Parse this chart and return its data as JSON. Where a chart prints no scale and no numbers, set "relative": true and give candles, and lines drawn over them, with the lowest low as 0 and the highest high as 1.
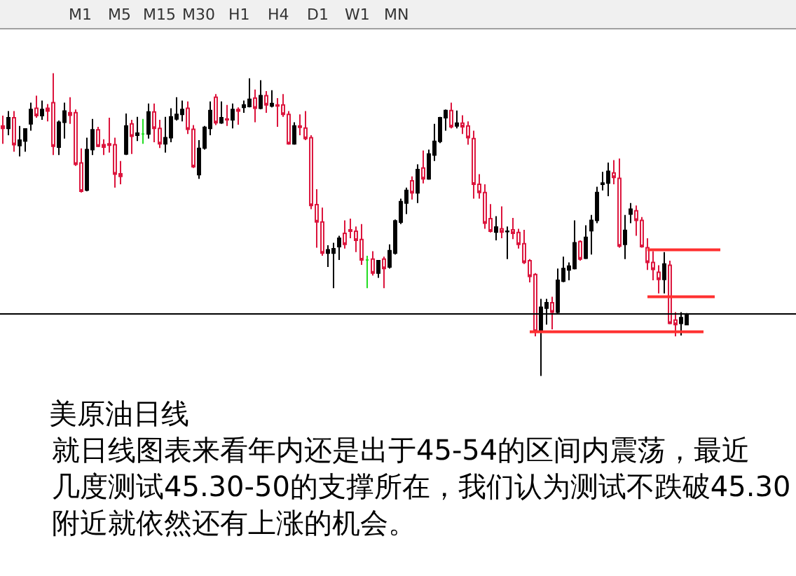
{
  "chart_data": {
    "type": "candlestick",
    "relative": true,
    "title": "美原油日线",
    "subtitle": "就日线图表来看年内还是出于45-54的区间内震荡，最近几度测试45.30-50的支撑所在，我们认为测试不跌破45.30附近就依然还有上涨的机会。",
    "annotations": [
      "M1",
      "M5",
      "M15",
      "M30",
      "H1",
      "H4",
      "D1",
      "W1",
      "MN"
    ],
    "categories": [
      null,
      null,
      null,
      null,
      null,
      null,
      null,
      null,
      null,
      null,
      null,
      null,
      null,
      null,
      null,
      null,
      null,
      null,
      null,
      null,
      null,
      null,
      null,
      null,
      null,
      null,
      null,
      null,
      null,
      null,
      null,
      null,
      null,
      null,
      null,
      null,
      null,
      null,
      null,
      null,
      null,
      null,
      null,
      null,
      null,
      null,
      null,
      null,
      null,
      null,
      null,
      null,
      null,
      null,
      null,
      null,
      null,
      null,
      null,
      null,
      null,
      null,
      null,
      null,
      null,
      null,
      null,
      null,
      null,
      null,
      null,
      null,
      null,
      null,
      null,
      null,
      null,
      null,
      null,
      null,
      null,
      null,
      null,
      null,
      null,
      null,
      null,
      null,
      null,
      null,
      null,
      null,
      null,
      null,
      null,
      null,
      null,
      null,
      null,
      null,
      null,
      null,
      null,
      null,
      null,
      null,
      null,
      null,
      null,
      null,
      null,
      null,
      null,
      null,
      null,
      null,
      null,
      null,
      null,
      null,
      null,
      null,
      null,
      null,
      null,
      null,
      null,
      null,
      null,
      null,
      null,
      null,
      null,
      null,
      null,
      null,
      null,
      null,
      null,
      null,
      null,
      null
    ],
    "ohlc": [
      [
        0.826,
        0.86,
        0.767,
        0.818
      ],
      [
        0.818,
        0.875,
        0.795,
        0.853
      ],
      [
        0.853,
        0.875,
        0.741,
        0.764
      ],
      [
        0.761,
        0.826,
        0.725,
        0.779
      ],
      [
        0.776,
        0.818,
        0.741,
        0.816
      ],
      [
        0.833,
        0.903,
        0.81,
        0.88
      ],
      [
        0.884,
        0.926,
        0.853,
        0.86
      ],
      [
        0.86,
        0.91,
        0.846,
        0.88
      ],
      [
        0.884,
        0.898,
        0.841,
        0.875
      ],
      [
        0.903,
        1.0,
        0.73,
        0.759
      ],
      [
        0.756,
        0.844,
        0.73,
        0.838
      ],
      [
        0.838,
        0.903,
        0.784,
        0.875
      ],
      [
        0.87,
        0.921,
        0.833,
        0.861
      ],
      [
        0.87,
        0.88,
        0.694,
        0.699
      ],
      [
        0.704,
        0.752,
        0.606,
        0.61
      ],
      [
        0.614,
        0.787,
        0.61,
        0.748
      ],
      [
        0.748,
        0.849,
        0.73,
        0.813
      ],
      [
        0.813,
        0.823,
        0.756,
        0.759
      ],
      [
        0.764,
        0.782,
        0.73,
        0.756
      ],
      [
        0.767,
        0.853,
        0.738,
        0.762
      ],
      [
        0.764,
        0.787,
        0.622,
        0.667
      ],
      [
        0.668,
        0.71,
        0.633,
        0.659
      ],
      [
        0.733,
        0.867,
        0.73,
        0.826
      ],
      [
        0.833,
        0.846,
        0.733,
        0.792
      ],
      [
        0.795,
        0.856,
        0.776,
        0.802
      ],
      [
        0.799,
        0.849,
        0.767,
        0.799
      ],
      [
        0.799,
        0.9,
        0.784,
        0.872
      ],
      [
        0.872,
        0.9,
        0.772,
        0.818
      ],
      [
        0.818,
        0.846,
        0.753,
        0.767
      ],
      [
        0.767,
        0.856,
        0.738,
        0.787
      ],
      [
        0.787,
        0.884,
        0.772,
        0.856
      ],
      [
        0.849,
        0.921,
        0.844,
        0.864
      ],
      [
        0.864,
        0.91,
        0.841,
        0.88
      ],
      [
        0.884,
        0.907,
        0.799,
        0.815
      ],
      [
        0.815,
        0.829,
        0.687,
        0.691
      ],
      [
        0.665,
        0.779,
        0.651,
        0.752
      ],
      [
        0.753,
        0.826,
        0.748,
        0.821
      ],
      [
        0.818,
        0.907,
        0.795,
        0.877
      ],
      [
        0.921,
        0.931,
        0.829,
        0.836
      ],
      [
        0.836,
        0.907,
        0.833,
        0.853
      ],
      [
        0.849,
        0.895,
        0.826,
        0.846
      ],
      [
        0.846,
        0.9,
        0.818,
        0.88
      ],
      [
        0.88,
        0.887,
        0.83,
        0.875
      ],
      [
        0.887,
        0.91,
        0.869,
        0.895
      ],
      [
        0.89,
        0.983,
        0.887,
        0.914
      ],
      [
        0.918,
        0.946,
        0.838,
        0.884
      ],
      [
        0.884,
        0.977,
        0.881,
        0.926
      ],
      [
        0.926,
        0.941,
        0.869,
        0.895
      ],
      [
        0.892,
        0.944,
        0.887,
        0.9
      ],
      [
        0.895,
        0.918,
        0.823,
        0.892
      ],
      [
        0.895,
        0.931,
        0.856,
        0.864
      ],
      [
        0.864,
        0.875,
        0.764,
        0.767
      ],
      [
        0.767,
        0.838,
        0.764,
        0.826
      ],
      [
        0.826,
        0.864,
        0.795,
        0.821
      ],
      [
        0.819,
        0.875,
        0.779,
        0.784
      ],
      [
        0.787,
        0.795,
        0.551,
        0.563
      ],
      [
        0.566,
        0.617,
        0.424,
        0.509
      ],
      [
        0.509,
        0.556,
        0.397,
        0.406
      ],
      [
        0.406,
        0.432,
        0.36,
        0.417
      ],
      [
        0.406,
        0.44,
        0.29,
        0.42
      ],
      [
        0.427,
        0.463,
        0.383,
        0.455
      ],
      [
        0.471,
        0.514,
        0.421,
        0.435
      ],
      [
        0.483,
        0.52,
        0.455,
        0.478
      ],
      [
        0.478,
        0.494,
        0.409,
        0.448
      ],
      [
        0.451,
        0.502,
        0.367,
        0.383
      ],
      [
        0.383,
        0.397,
        0.29,
        0.383
      ],
      [
        0.386,
        0.412,
        0.332,
        0.34
      ],
      [
        0.34,
        0.381,
        0.324,
        0.381
      ],
      [
        0.386,
        0.394,
        0.29,
        0.355
      ],
      [
        0.36,
        0.435,
        0.355,
        0.414
      ],
      [
        0.406,
        0.517,
        0.401,
        0.512
      ],
      [
        0.508,
        0.586,
        0.502,
        0.576
      ],
      [
        0.571,
        0.622,
        0.535,
        0.613
      ],
      [
        0.645,
        0.659,
        0.583,
        0.605
      ],
      [
        0.605,
        0.699,
        0.571,
        0.682
      ],
      [
        0.687,
        0.745,
        0.636,
        0.651
      ],
      [
        0.651,
        0.748,
        0.648,
        0.733
      ],
      [
        0.73,
        0.833,
        0.71,
        0.775
      ],
      [
        0.775,
        0.856,
        0.769,
        0.853
      ],
      [
        0.853,
        0.88,
        0.81,
        0.877
      ],
      [
        0.877,
        0.903,
        0.818,
        0.823
      ],
      [
        0.826,
        0.877,
        0.818,
        0.835
      ],
      [
        0.835,
        0.861,
        0.799,
        0.823
      ],
      [
        0.826,
        0.841,
        0.764,
        0.787
      ],
      [
        0.784,
        0.81,
        0.586,
        0.633
      ],
      [
        0.633,
        0.667,
        0.586,
        0.606
      ],
      [
        0.606,
        0.633,
        0.486,
        0.505
      ],
      [
        0.52,
        0.568,
        0.474,
        0.478
      ],
      [
        0.475,
        0.528,
        0.448,
        0.492
      ],
      [
        0.486,
        0.56,
        0.455,
        0.475
      ],
      [
        0.477,
        0.494,
        0.386,
        0.478
      ],
      [
        0.483,
        0.522,
        0.452,
        0.471
      ],
      [
        0.474,
        0.486,
        0.421,
        0.435
      ],
      [
        0.437,
        0.483,
        0.37,
        0.375
      ],
      [
        0.381,
        0.386,
        0.309,
        0.329
      ],
      [
        0.335,
        0.34,
        0.131,
        0.147
      ],
      [
        0.147,
        0.255,
        0.0,
        0.227
      ],
      [
        0.224,
        0.255,
        0.17,
        0.242
      ],
      [
        0.242,
        0.262,
        0.154,
        0.211
      ],
      [
        0.211,
        0.355,
        0.205,
        0.316
      ],
      [
        0.313,
        0.394,
        0.31,
        0.355
      ],
      [
        0.35,
        0.375,
        0.316,
        0.363
      ],
      [
        0.355,
        0.514,
        0.352,
        0.44
      ],
      [
        0.444,
        0.448,
        0.381,
        0.386
      ],
      [
        0.389,
        0.498,
        0.386,
        0.458
      ],
      [
        0.48,
        0.532,
        0.401,
        0.514
      ],
      [
        0.514,
        0.625,
        0.505,
        0.606
      ],
      [
        0.633,
        0.674,
        0.613,
        0.637
      ],
      [
        0.637,
        0.705,
        0.594,
        0.676
      ],
      [
        0.671,
        0.713,
        0.633,
        0.656
      ],
      [
        0.653,
        0.718,
        0.424,
        0.429
      ],
      [
        0.435,
        0.532,
        0.386,
        0.481
      ],
      [
        0.535,
        0.571,
        0.505,
        0.551
      ],
      [
        0.546,
        0.563,
        0.463,
        0.514
      ],
      [
        0.514,
        0.525,
        0.424,
        0.427
      ],
      [
        0.424,
        0.455,
        0.35,
        0.375
      ],
      [
        0.375,
        0.412,
        0.316,
        0.352
      ],
      [
        0.343,
        0.366,
        0.273,
        0.319
      ],
      [
        0.319,
        0.409,
        0.273,
        0.37
      ],
      [
        0.366,
        0.381,
        0.171,
        0.174
      ],
      [
        0.185,
        0.211,
        0.131,
        0.17
      ],
      [
        0.174,
        0.211,
        0.134,
        0.193
      ],
      [
        0.17,
        0.208,
        0.168,
        0.204
      ],
      null,
      null,
      null,
      null,
      null,
      null,
      null,
      null,
      null,
      null,
      null,
      null,
      null,
      null,
      null,
      null,
      null,
      null,
      null
    ],
    "colors": [
      "#dc143c",
      "#000000",
      "#dc143c",
      "#000000",
      "#000000",
      "#000000",
      "#dc143c",
      "#000000",
      "#dc143c",
      "#dc143c",
      "#000000",
      "#000000",
      "#dc143c",
      "#dc143c",
      "#dc143c",
      "#000000",
      "#000000",
      "#dc143c",
      "#dc143c",
      "#dc143c",
      "#dc143c",
      "#dc143c",
      "#000000",
      "#dc143c",
      "#000000",
      "#22dd22",
      "#000000",
      "#dc143c",
      "#dc143c",
      "#000000",
      "#000000",
      "#000000",
      "#000000",
      "#dc143c",
      "#dc143c",
      "#000000",
      "#000000",
      "#000000",
      "#dc143c",
      "#000000",
      "#dc143c",
      "#000000",
      "#dc143c",
      "#000000",
      "#000000",
      "#dc143c",
      "#000000",
      "#dc143c",
      "#000000",
      "#dc143c",
      "#dc143c",
      "#dc143c",
      "#000000",
      "#dc143c",
      "#dc143c",
      "#dc143c",
      "#dc143c",
      "#dc143c",
      "#000000",
      "#000000",
      "#000000",
      "#dc143c",
      "#dc143c",
      "#dc143c",
      "#dc143c",
      "#22dd22",
      "#dc143c",
      "#000000",
      "#dc143c",
      "#000000",
      "#000000",
      "#000000",
      "#000000",
      "#dc143c",
      "#000000",
      "#dc143c",
      "#000000",
      "#000000",
      "#000000",
      "#000000",
      "#dc143c",
      "#000000",
      "#dc143c",
      "#dc143c",
      "#dc143c",
      "#dc143c",
      "#dc143c",
      "#dc143c",
      "#000000",
      "#dc143c",
      "#000000",
      "#dc143c",
      "#dc143c",
      "#dc143c",
      "#dc143c",
      "#dc143c",
      "#000000",
      "#000000",
      "#dc143c",
      "#000000",
      "#000000",
      "#000000",
      "#000000",
      "#dc143c",
      "#000000",
      "#000000",
      "#000000",
      "#000000",
      "#000000",
      "#dc143c",
      "#dc143c",
      "#000000",
      "#000000",
      "#dc143c",
      "#dc143c",
      "#dc143c",
      "#dc143c",
      "#dc143c",
      "#000000",
      "#dc143c",
      "#dc143c",
      "#000000",
      "#000000",
      null,
      null,
      null,
      null,
      null,
      null,
      null,
      null,
      null,
      null,
      null,
      null,
      null,
      null,
      null,
      null,
      null,
      null,
      null
    ],
    "series": [
      {
        "type": "line",
        "color": "#ff3030",
        "values": [
          null,
          null,
          null,
          null,
          null,
          null,
          null,
          null,
          null,
          null,
          null,
          null,
          null,
          null,
          null,
          null,
          null,
          null,
          null,
          null,
          null,
          null,
          null,
          null,
          null,
          null,
          null,
          null,
          null,
          null,
          null,
          null,
          null,
          null,
          null,
          null,
          null,
          null,
          null,
          null,
          null,
          null,
          null,
          null,
          null,
          null,
          null,
          null,
          null,
          null,
          null,
          null,
          null,
          null,
          null,
          null,
          null,
          null,
          null,
          null,
          null,
          null,
          null,
          null,
          null,
          null,
          null,
          null,
          null,
          null,
          null,
          null,
          null,
          null,
          null,
          null,
          null,
          null,
          null,
          null,
          null,
          null,
          null,
          null,
          null,
          null,
          null,
          null,
          null,
          null,
          null,
          null,
          null,
          null,
          0.146,
          0.146,
          0.146,
          0.146,
          0.146,
          0.146,
          0.146,
          0.146,
          0.146,
          0.146,
          0.146,
          0.146,
          0.146,
          0.146,
          0.146,
          0.146,
          0.146,
          0.146,
          0.146,
          0.146,
          0.146,
          0.146,
          0.146,
          0.146,
          0.146,
          0.146,
          0.146,
          0.146,
          0.146,
          0.146,
          0.146,
          0.146,
          null,
          null,
          null,
          null,
          null,
          null,
          null,
          null,
          null,
          null,
          null,
          null,
          null,
          null,
          null,
          null
        ]
      },
      {
        "type": "line",
        "color": "#ff3030",
        "values": [
          null,
          null,
          null,
          null,
          null,
          null,
          null,
          null,
          null,
          null,
          null,
          null,
          null,
          null,
          null,
          null,
          null,
          null,
          null,
          null,
          null,
          null,
          null,
          null,
          null,
          null,
          null,
          null,
          null,
          null,
          null,
          null,
          null,
          null,
          null,
          null,
          null,
          null,
          null,
          null,
          null,
          null,
          null,
          null,
          null,
          null,
          null,
          null,
          null,
          null,
          null,
          null,
          null,
          null,
          null,
          null,
          null,
          null,
          null,
          null,
          null,
          null,
          null,
          null,
          null,
          null,
          null,
          null,
          null,
          null,
          null,
          null,
          null,
          null,
          null,
          null,
          null,
          null,
          null,
          null,
          null,
          null,
          null,
          null,
          null,
          null,
          null,
          null,
          null,
          null,
          null,
          null,
          null,
          null,
          null,
          null,
          null,
          null,
          null,
          null,
          null,
          null,
          null,
          null,
          null,
          null,
          null,
          null,
          null,
          null,
          null,
          null,
          null,
          null,
          null,
          0.262,
          0.262,
          0.262,
          0.262,
          0.262,
          0.262,
          0.262,
          0.262,
          0.262,
          0.262,
          0.262,
          0.262,
          0.262,
          null,
          null,
          null,
          null,
          null,
          null,
          null,
          null,
          null,
          null,
          null,
          null,
          null,
          null
        ]
      },
      {
        "type": "line",
        "color": "#ff3030",
        "values": [
          null,
          null,
          null,
          null,
          null,
          null,
          null,
          null,
          null,
          null,
          null,
          null,
          null,
          null,
          null,
          null,
          null,
          null,
          null,
          null,
          null,
          null,
          null,
          null,
          null,
          null,
          null,
          null,
          null,
          null,
          null,
          null,
          null,
          null,
          null,
          null,
          null,
          null,
          null,
          null,
          null,
          null,
          null,
          null,
          null,
          null,
          null,
          null,
          null,
          null,
          null,
          null,
          null,
          null,
          null,
          null,
          null,
          null,
          null,
          null,
          null,
          null,
          null,
          null,
          null,
          null,
          null,
          null,
          null,
          null,
          null,
          null,
          null,
          null,
          null,
          null,
          null,
          null,
          null,
          null,
          null,
          null,
          null,
          null,
          null,
          null,
          null,
          null,
          null,
          null,
          null,
          null,
          null,
          null,
          null,
          null,
          null,
          null,
          null,
          null,
          null,
          null,
          null,
          null,
          null,
          null,
          null,
          null,
          null,
          null,
          null,
          null,
          null,
          null,
          null,
          0.417,
          0.417,
          0.417,
          0.417,
          0.417,
          0.417,
          0.417,
          0.417,
          0.417,
          0.417,
          0.417,
          0.417,
          0.417,
          0.417,
          null,
          null,
          null,
          null,
          null,
          null,
          null,
          null,
          null,
          null,
          null,
          null,
          null
        ]
      }
    ],
    "ref_lines": [
      {
        "axis": "y",
        "value": 0.205,
        "color": "#000000"
      }
    ]
  }
}
